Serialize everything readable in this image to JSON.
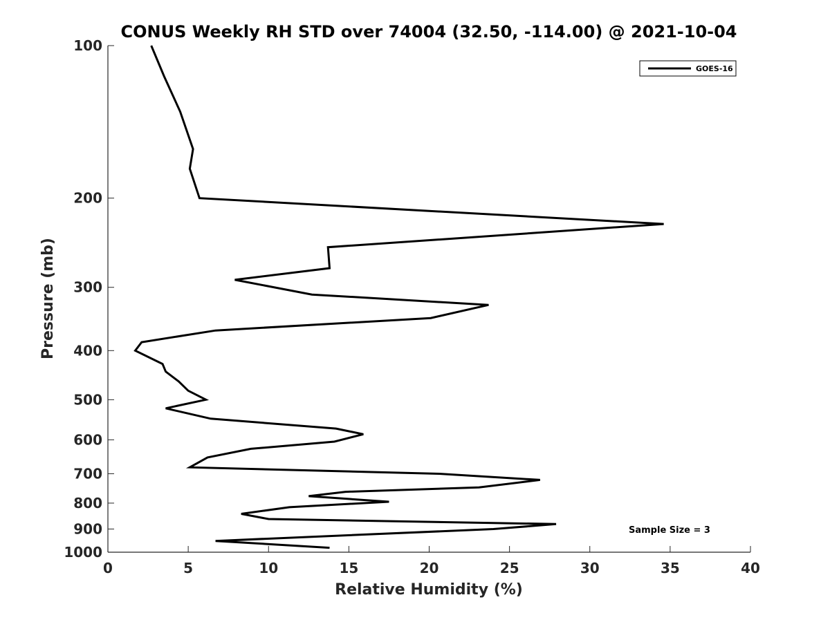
{
  "chart_data": {
    "type": "line",
    "title": "CONUS Weekly RH STD over 74004 (32.50, -114.00) @ 2021-10-04",
    "xlabel": "Relative Humidity (%)",
    "ylabel": "Pressure (mb)",
    "xlim": [
      0,
      40
    ],
    "ylim": [
      100,
      1000
    ],
    "y_scale": "log",
    "y_reversed": true,
    "xticks": [
      0,
      5,
      10,
      15,
      20,
      25,
      30,
      35,
      40
    ],
    "yticks": [
      100,
      200,
      300,
      400,
      500,
      600,
      700,
      800,
      900,
      1000
    ],
    "grid": false,
    "legend_position": "top-right",
    "series": [
      {
        "name": "GOES-16",
        "color": "#000000",
        "points": [
          [
            2.7,
            100
          ],
          [
            3.5,
            115
          ],
          [
            4.5,
            135
          ],
          [
            5.3,
            160
          ],
          [
            5.1,
            175
          ],
          [
            5.7,
            200
          ],
          [
            34.6,
            225
          ],
          [
            13.7,
            250
          ],
          [
            13.8,
            275
          ],
          [
            7.9,
            290
          ],
          [
            12.7,
            310
          ],
          [
            23.7,
            325
          ],
          [
            20.1,
            345
          ],
          [
            6.7,
            365
          ],
          [
            2.1,
            385
          ],
          [
            1.7,
            400
          ],
          [
            3.4,
            425
          ],
          [
            3.6,
            440
          ],
          [
            4.4,
            460
          ],
          [
            5.0,
            480
          ],
          [
            6.1,
            500
          ],
          [
            3.6,
            520
          ],
          [
            6.4,
            545
          ],
          [
            14.2,
            570
          ],
          [
            15.9,
            585
          ],
          [
            14.1,
            605
          ],
          [
            8.9,
            625
          ],
          [
            6.2,
            650
          ],
          [
            5.1,
            680
          ],
          [
            20.6,
            700
          ],
          [
            26.9,
            720
          ],
          [
            23.1,
            745
          ],
          [
            14.8,
            760
          ],
          [
            12.5,
            775
          ],
          [
            17.5,
            795
          ],
          [
            11.3,
            815
          ],
          [
            8.3,
            840
          ],
          [
            10.0,
            860
          ],
          [
            27.9,
            880
          ],
          [
            24.0,
            900
          ],
          [
            6.7,
            950
          ],
          [
            13.8,
            980
          ]
        ]
      }
    ],
    "annotations": [
      {
        "text": "Sample Size = 3"
      }
    ]
  }
}
